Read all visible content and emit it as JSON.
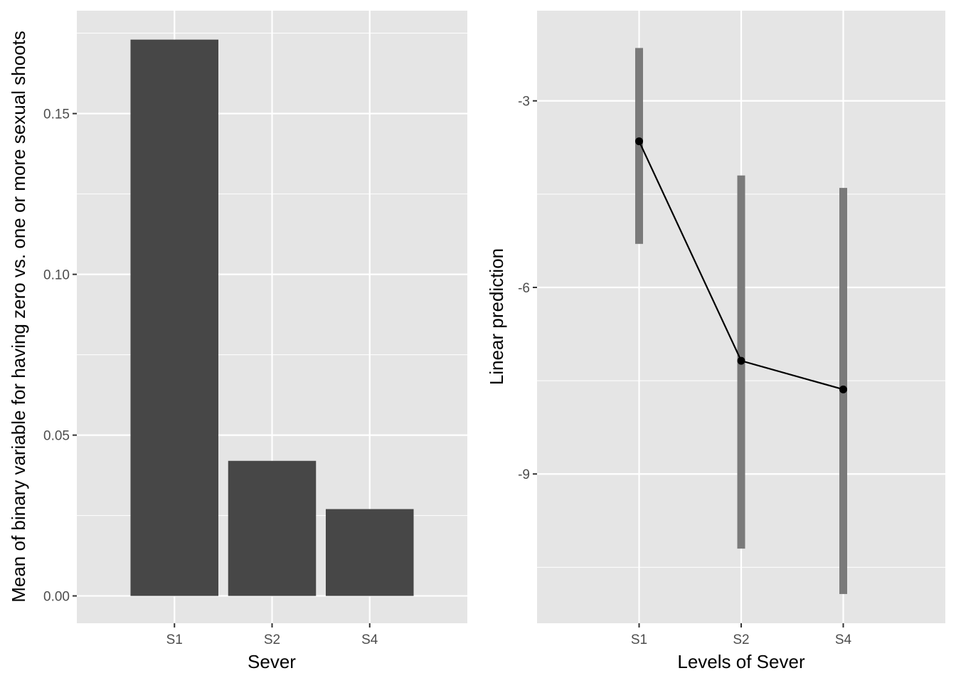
{
  "chart_data": [
    {
      "type": "bar",
      "categories": [
        "S1",
        "S2",
        "S4"
      ],
      "values": [
        0.173,
        0.042,
        0.027
      ],
      "xlabel": "Sever",
      "ylabel": "Mean of binary variable for having zero vs. one or more sexual shoots",
      "ylim": [
        -0.0085,
        0.182
      ],
      "y_ticks": [
        0.0,
        0.05,
        0.1,
        0.15
      ],
      "y_tick_labels": [
        "0.00",
        "0.05",
        "0.10",
        "0.15"
      ],
      "grid": true,
      "bar_color": "#474747",
      "panel_background": "#e5e5e5"
    },
    {
      "type": "line",
      "categories": [
        "S1",
        "S2",
        "S4"
      ],
      "values": [
        -3.65,
        -7.18,
        -7.64
      ],
      "ci_lower": [
        -5.3,
        -10.2,
        -10.93
      ],
      "ci_upper": [
        -2.15,
        -4.2,
        -4.4
      ],
      "xlabel": "Levels of Sever",
      "ylabel": "Linear prediction",
      "ylim": [
        -11.4,
        -1.55
      ],
      "y_ticks": [
        -9,
        -6,
        -3
      ],
      "y_tick_labels": [
        "-9",
        "-6",
        "-3"
      ],
      "grid": true,
      "line_color": "#000000",
      "errorbar_color": "#7a7a7a",
      "panel_background": "#e5e5e5"
    }
  ]
}
